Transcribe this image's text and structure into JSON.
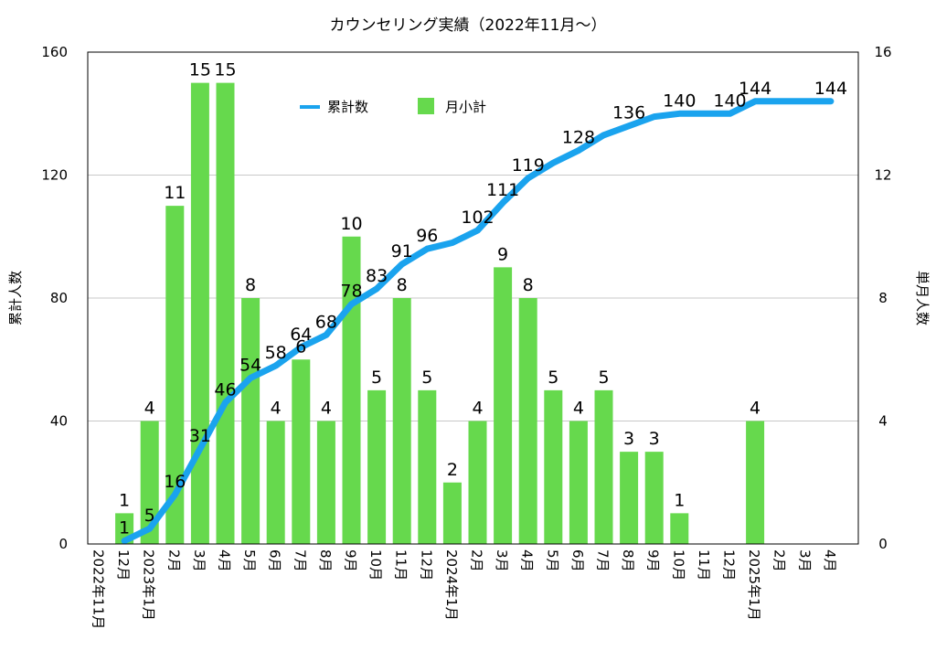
{
  "chart_data": {
    "type": "bar+line",
    "title": "カウンセリング実績（2022年11月〜）",
    "ylabel_left": "累計人数",
    "ylabel_right": "単月人数",
    "ylim_left": [
      0,
      160
    ],
    "ylim_right": [
      0,
      16
    ],
    "yticks_left": [
      0,
      40,
      80,
      120,
      160
    ],
    "yticks_right": [
      0,
      4,
      8,
      12,
      16
    ],
    "grid": true,
    "legend": {
      "position": "top-center",
      "line_label": "累計数",
      "bar_label": "月小計"
    },
    "categories": [
      "2022年11月",
      "12月",
      "2023年1月",
      "2月",
      "3月",
      "4月",
      "5月",
      "6月",
      "7月",
      "8月",
      "9月",
      "10月",
      "11月",
      "12月",
      "2024年1月",
      "2月",
      "3月",
      "4月",
      "5月",
      "6月",
      "7月",
      "8月",
      "9月",
      "10月",
      "11月",
      "12月",
      "2025年1月",
      "2月",
      "3月",
      "4月"
    ],
    "series": [
      {
        "name": "月小計",
        "kind": "bar",
        "axis": "right",
        "values": [
          0,
          1,
          4,
          11,
          15,
          15,
          8,
          4,
          6,
          4,
          10,
          5,
          8,
          5,
          2,
          4,
          9,
          8,
          5,
          4,
          5,
          3,
          3,
          1,
          0,
          0,
          4,
          0,
          0,
          0
        ],
        "labels": [
          "",
          "1",
          "4",
          "11",
          "15",
          "15",
          "8",
          "4",
          "6",
          "4",
          "10",
          "5",
          "8",
          "5",
          "2",
          "4",
          "9",
          "8",
          "5",
          "4",
          "5",
          "3",
          "3",
          "1",
          "",
          "",
          "4",
          "",
          "",
          ""
        ]
      },
      {
        "name": "累計数",
        "kind": "line",
        "axis": "left",
        "values": [
          null,
          1,
          5,
          16,
          31,
          46,
          54,
          58,
          64,
          68,
          78,
          83,
          91,
          96,
          98,
          102,
          111,
          119,
          124,
          128,
          133,
          136,
          139,
          140,
          140,
          140,
          144,
          144,
          144,
          144
        ],
        "labels": [
          "",
          "1",
          "5",
          "16",
          "31",
          "46",
          "54",
          "58",
          "64",
          "68",
          "78",
          "83",
          "91",
          "96",
          "",
          "102",
          "111",
          "119",
          "",
          "128",
          "",
          "136",
          "",
          "140",
          "",
          "140",
          "144",
          "",
          "",
          "144"
        ]
      }
    ]
  },
  "colors": {
    "bar": "#66d94d",
    "line": "#1aa3ee",
    "grid": "#c8c8c8",
    "axis": "#000000"
  }
}
